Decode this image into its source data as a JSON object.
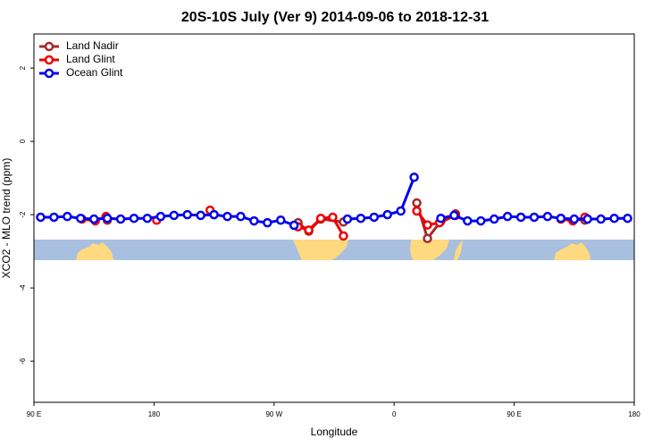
{
  "chart_data": {
    "type": "line",
    "title": "20S-10S July (Ver 9)   2014-09-06 to 2018-12-31",
    "xlabel": "Longitude",
    "ylabel": "XCO2 - MLO trend (ppm)",
    "xlim": [
      90,
      540
    ],
    "xticks": [
      {
        "value": 90,
        "label": "90 E"
      },
      180,
      {
        "value": 270,
        "label": "90 W"
      },
      {
        "value": 360,
        "label": "0"
      },
      {
        "value": 450,
        "label": "90 E"
      },
      {
        "value": 540,
        "label": "180"
      }
    ],
    "ylim": [
      -7.12,
      2.93
    ],
    "yticks": [
      2,
      0,
      -2,
      -4,
      -6
    ],
    "legend": "top-left",
    "series": [
      {
        "name": "Land Nadir",
        "color": "#a52a2a",
        "x": [
          145,
          null,
          288,
          296,
          305,
          322,
          null,
          377,
          385,
          395,
          406,
          null,
          485,
          503
        ],
        "values": [
          -2.15,
          null,
          -2.22,
          -2.45,
          -2.12,
          -2.2,
          null,
          -1.68,
          -2.65,
          -2.18,
          -1.98,
          null,
          -2.1,
          -2.15
        ]
      },
      {
        "name": "Land Glint",
        "color": "#ee0000",
        "x": [
          126,
          136,
          144,
          null,
          182,
          null,
          222,
          null,
          288,
          296,
          305,
          314,
          322,
          null,
          377,
          385,
          394,
          406,
          null,
          485,
          494,
          503
        ],
        "values": [
          -2.12,
          -2.17,
          -2.05,
          null,
          -2.15,
          null,
          -1.88,
          null,
          -2.33,
          -2.42,
          -2.1,
          -2.07,
          -2.58,
          null,
          -1.9,
          -2.28,
          -2.22,
          -2.02,
          null,
          -2.12,
          -2.17,
          -2.07
        ]
      },
      {
        "name": "Ocean Glint",
        "color": "#0000ee",
        "x": [
          95,
          105,
          115,
          125,
          135,
          145,
          155,
          165,
          175,
          185,
          195,
          205,
          215,
          225,
          235,
          245,
          255,
          265,
          275,
          285,
          295,
          305,
          315,
          325,
          335,
          345,
          355,
          365,
          375,
          385,
          395,
          405,
          415,
          425,
          435,
          445,
          455,
          465,
          475,
          485,
          495,
          505,
          515,
          525,
          535
        ],
        "values": [
          -2.07,
          -2.07,
          -2.05,
          -2.1,
          -2.12,
          -2.1,
          -2.12,
          -2.1,
          -2.1,
          -2.05,
          -2.02,
          -2.0,
          -2.02,
          -2.0,
          -2.05,
          -2.05,
          -2.17,
          -2.22,
          -2.15,
          -2.29,
          null,
          null,
          null,
          -2.12,
          -2.1,
          -2.07,
          -2.0,
          -1.9,
          -0.98,
          null,
          -2.1,
          -2.02,
          -2.17,
          -2.17,
          -2.12,
          -2.05,
          -2.07,
          -2.07,
          -2.05,
          -2.1,
          -2.12,
          -2.12,
          -2.12,
          -2.1,
          -2.1
        ]
      }
    ]
  }
}
